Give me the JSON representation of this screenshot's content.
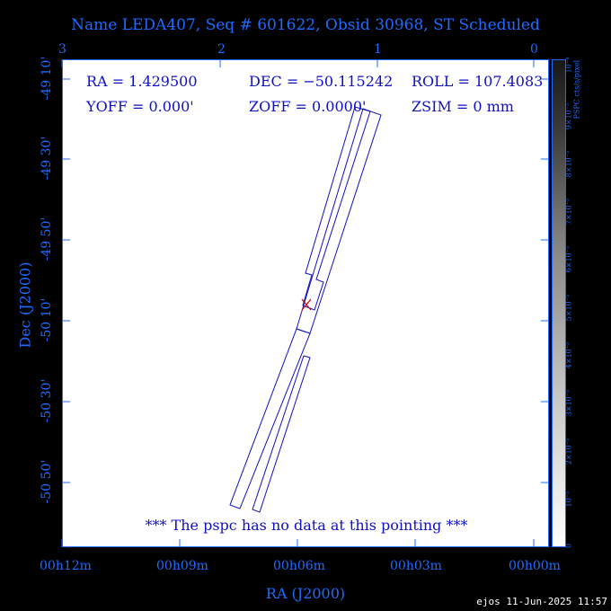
{
  "title": "Name LEDA407, Seq # 601622, Obsid 30968, ST Scheduled",
  "info": {
    "ra": "RA = 1.429500",
    "dec": "DEC = −50.115242",
    "roll": "ROLL = 107.4083",
    "yoff": "YOFF =    0.000'",
    "zoff": "ZOFF =  0.0000'",
    "zsim": "ZSIM = 0 mm"
  },
  "note": "*** The pspc has no data at this pointing ***",
  "colorbar_label": "PSPC cts/s/pixel",
  "colorbar_ticks": [
    "0",
    "10⁻⁵",
    "2×10⁻⁵",
    "3×10⁻⁵",
    "4×10⁻⁵",
    "5×10⁻⁵",
    "6×10⁻⁵",
    "7×10⁻⁵",
    "8×10⁻⁵",
    "9×10⁻⁵",
    "10⁻⁴"
  ],
  "stamp": "ejos 11-Jun-2025 11:57",
  "colors": {
    "axis": "#1f6bff",
    "outline": "#1010c0",
    "marker": "#cc0000"
  },
  "chart_data": {
    "type": "scatter",
    "xlabel": "RA (J2000)",
    "ylabel": "Dec (J2000)",
    "x_ticks": [
      "00h12m",
      "00h09m",
      "00h06m",
      "00h03m",
      "00h00m"
    ],
    "y_ticks": [
      "-49 10'",
      "-49 30'",
      "-49 50'",
      "-50 10'",
      "-50 30'",
      "-50 50'"
    ],
    "top_ticks": [
      "3",
      "2",
      "1",
      "0"
    ],
    "target": {
      "ra_deg": 1.4295,
      "dec_deg": -50.115242
    },
    "grid": false
  }
}
